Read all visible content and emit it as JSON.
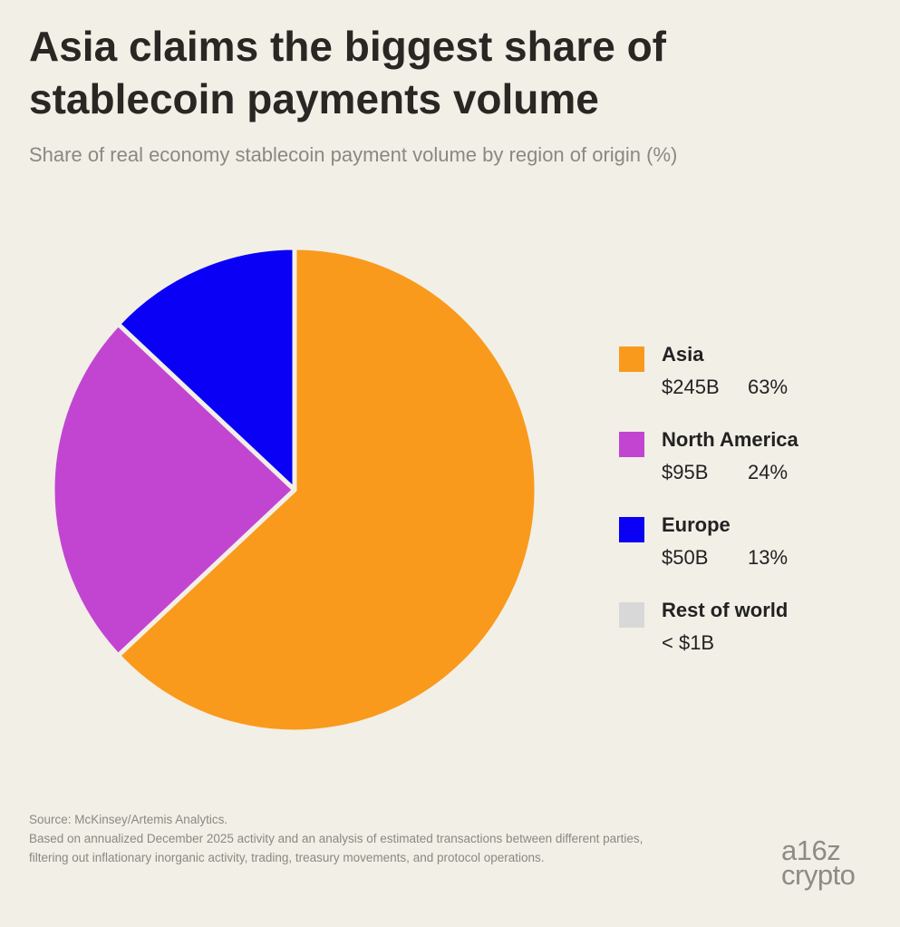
{
  "title": "Asia claims the biggest share of stablecoin payments volume",
  "subtitle": "Share of real economy stablecoin payment volume by region of origin (%)",
  "chart_data": {
    "type": "pie",
    "title": "Asia claims the biggest share of stablecoin payments volume",
    "subtitle": "Share of real economy stablecoin payment volume by region of origin (%)",
    "unit": "%",
    "legend_position": "right",
    "slices": [
      {
        "name": "Asia",
        "amount": "$245B",
        "percent_label": "63%",
        "value": 63,
        "color": "#f99a1c"
      },
      {
        "name": "North America",
        "amount": "$95B",
        "percent_label": "24%",
        "value": 24,
        "color": "#c245d2"
      },
      {
        "name": "Europe",
        "amount": "$50B",
        "percent_label": "13%",
        "value": 13,
        "color": "#0a00f5"
      },
      {
        "name": "Rest of world",
        "amount": "< $1B",
        "percent_label": "",
        "value": 0,
        "color": "#d8d8d8"
      }
    ]
  },
  "footer": {
    "source": "Source: McKinsey/Artemis Analytics.",
    "note": "Based on annualized December 2025 activity and an analysis of estimated transactions between different parties, filtering out inflationary inorganic activity, trading, treasury movements, and protocol operations."
  },
  "logo": {
    "line1": "a16z",
    "line2": "crypto"
  }
}
